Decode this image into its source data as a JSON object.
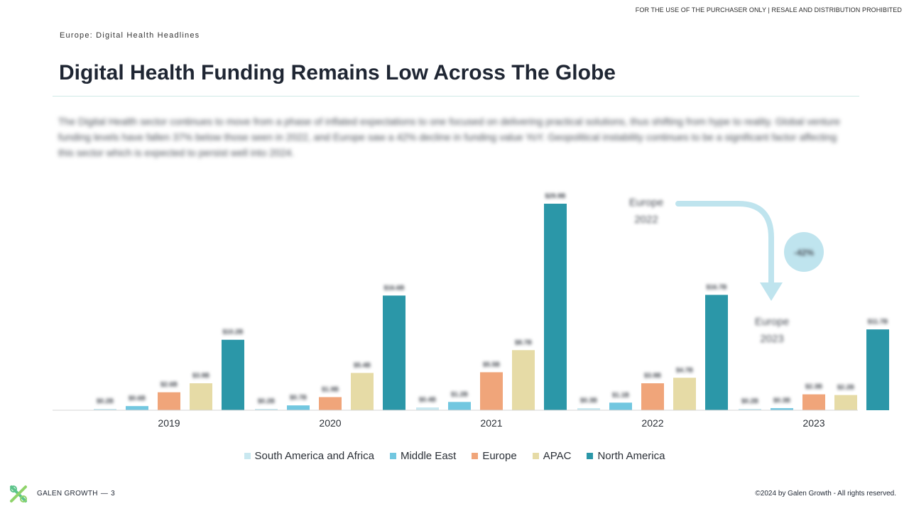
{
  "header": {
    "disclaimer": "FOR THE USE OF THE PURCHASER ONLY | RESALE AND DISTRIBUTION PROHIBITED",
    "section_label": "Europe: Digital Health Headlines",
    "title": "Digital Health Funding Remains Low Across The Globe"
  },
  "intro_text": "The Digital Health sector continues to move from a phase of inflated expectations to one focused on delivering practical solutions, thus shifting from hype to reality. Global venture funding levels have fallen 37% below those seen in 2022, and Europe saw a 42% decline in funding value YoY. Geopolitical instability continues to be a significant factor affecting this sector which is expected to persist well into 2024.",
  "colors": {
    "south_america_africa": "#c9e8f0",
    "middle_east": "#72c7e0",
    "europe": "#f0a57a",
    "apac": "#e6dba6",
    "north_america": "#2b97a8",
    "annotation": "#bfe4ee"
  },
  "chart_data": {
    "type": "bar",
    "categories": [
      "2019",
      "2020",
      "2021",
      "2022",
      "2023"
    ],
    "ylim": [
      0,
      30
    ],
    "series": [
      {
        "name": "South America and Africa",
        "values": [
          0.2,
          0.2,
          0.4,
          0.3,
          0.2
        ]
      },
      {
        "name": "Middle East",
        "values": [
          0.6,
          0.7,
          1.2,
          1.1,
          0.3
        ]
      },
      {
        "name": "Europe",
        "values": [
          2.6,
          1.9,
          5.5,
          3.9,
          2.3
        ]
      },
      {
        "name": "APAC",
        "values": [
          3.9,
          5.4,
          8.7,
          4.7,
          2.2
        ]
      },
      {
        "name": "North America",
        "values": [
          10.2,
          16.6,
          29.9,
          16.7,
          11.7
        ]
      }
    ],
    "data_labels": [
      [
        "$0.2B",
        "$0.6B",
        "$2.6B",
        "$3.9B",
        "$10.2B"
      ],
      [
        "$0.2B",
        "$0.7B",
        "$1.9B",
        "$5.4B",
        "$16.6B"
      ],
      [
        "$0.4B",
        "$1.2B",
        "$5.5B",
        "$8.7B",
        "$29.9B"
      ],
      [
        "$0.3B",
        "$1.1B",
        "$3.9B",
        "$4.7B",
        "$16.7B"
      ],
      [
        "$0.2B",
        "$0.3B",
        "$2.3B",
        "$2.2B",
        "$11.7B"
      ]
    ],
    "annotations": {
      "start_label_line1": "Europe",
      "start_label_line2": "2022",
      "end_label_line1": "Europe",
      "end_label_line2": "2023",
      "change_badge": "-42%"
    },
    "legend_position": "bottom",
    "grid": false
  },
  "footer": {
    "brand": "GALEN GROWTH",
    "page_number": "3",
    "copyright": "©2024 by Galen Growth - All rights reserved."
  }
}
